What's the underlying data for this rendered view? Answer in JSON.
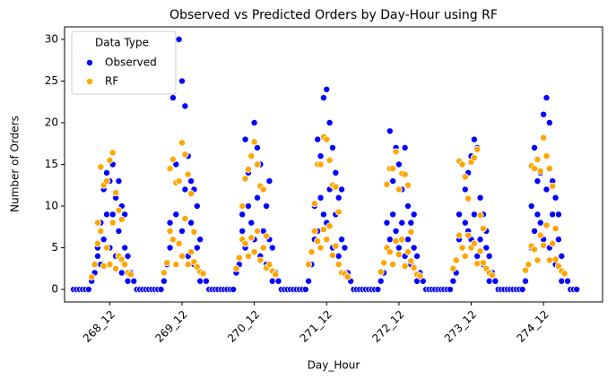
{
  "chart_data": {
    "type": "scatter",
    "title": "Observed vs Predicted Orders by Day-Hour using RF",
    "x_label": "Day_Hour",
    "y_label": "Number of Orders",
    "legend_title": "Data Type",
    "legend_position": "upper left",
    "xlim": [
      -3,
      175.6
    ],
    "ylim": [
      -1.5,
      31.5
    ],
    "xticks": [
      {
        "value": 12,
        "label": "268_12"
      },
      {
        "value": 36,
        "label": "269_12"
      },
      {
        "value": 60,
        "label": "270_12"
      },
      {
        "value": 84,
        "label": "271_12"
      },
      {
        "value": 108,
        "label": "272_12"
      },
      {
        "value": 132,
        "label": "273_12"
      },
      {
        "value": 156,
        "label": "274_12"
      }
    ],
    "yticks": [
      0,
      5,
      10,
      15,
      20,
      25,
      30
    ],
    "series": [
      {
        "name": "Observed",
        "color": "#0000ff",
        "x": [
          0,
          1,
          2,
          3,
          4,
          5,
          6,
          7,
          8,
          8,
          9,
          9,
          10,
          10,
          11,
          11,
          12,
          12,
          13,
          13,
          14,
          14,
          15,
          15,
          16,
          16,
          17,
          17,
          18,
          18,
          19,
          20,
          21,
          22,
          23,
          24,
          25,
          26,
          27,
          28,
          29,
          30,
          31,
          32,
          32,
          33,
          33,
          34,
          34,
          35,
          35,
          36,
          36,
          37,
          37,
          38,
          38,
          39,
          39,
          40,
          40,
          41,
          41,
          42,
          42,
          43,
          44,
          45,
          46,
          47,
          48,
          49,
          50,
          51,
          52,
          53,
          54,
          55,
          56,
          56,
          57,
          57,
          58,
          58,
          59,
          59,
          60,
          60,
          61,
          61,
          62,
          62,
          63,
          63,
          64,
          64,
          65,
          65,
          66,
          66,
          67,
          68,
          69,
          70,
          71,
          72,
          73,
          74,
          75,
          76,
          77,
          78,
          79,
          80,
          80,
          81,
          81,
          82,
          82,
          83,
          83,
          84,
          84,
          85,
          85,
          86,
          86,
          87,
          87,
          88,
          88,
          89,
          89,
          90,
          90,
          91,
          92,
          93,
          94,
          95,
          96,
          97,
          98,
          99,
          100,
          101,
          102,
          103,
          104,
          104,
          105,
          105,
          106,
          106,
          107,
          107,
          108,
          108,
          109,
          109,
          110,
          110,
          111,
          111,
          112,
          112,
          113,
          113,
          114,
          114,
          115,
          116,
          117,
          118,
          119,
          120,
          121,
          122,
          123,
          124,
          125,
          126,
          127,
          128,
          128,
          129,
          129,
          130,
          130,
          131,
          131,
          132,
          132,
          133,
          133,
          134,
          134,
          135,
          135,
          136,
          136,
          137,
          137,
          138,
          138,
          139,
          140,
          141,
          142,
          143,
          144,
          145,
          146,
          147,
          148,
          149,
          150,
          151,
          152,
          152,
          153,
          153,
          154,
          154,
          155,
          155,
          156,
          156,
          157,
          157,
          158,
          158,
          159,
          159,
          160,
          160,
          161,
          161,
          162,
          162,
          163,
          164,
          165,
          166,
          167
        ],
        "values": [
          0,
          0,
          0,
          0,
          0,
          0,
          1,
          2,
          4,
          5,
          8,
          3,
          12,
          6,
          14,
          9,
          13,
          5,
          9,
          15,
          11,
          4,
          13,
          7,
          10,
          2,
          9,
          5,
          4,
          1,
          2,
          1,
          0,
          0,
          0,
          0,
          0,
          0,
          0,
          0,
          0,
          1,
          3,
          5,
          8,
          23,
          6,
          15,
          9,
          13,
          30,
          25,
          7,
          22,
          12,
          16,
          4,
          13,
          8,
          12,
          3,
          10,
          5,
          6,
          1,
          2,
          1,
          0,
          0,
          0,
          0,
          0,
          0,
          0,
          0,
          0,
          2,
          3,
          7,
          9,
          18,
          5,
          14,
          10,
          16,
          8,
          20,
          6,
          17,
          11,
          15,
          4,
          12,
          7,
          10,
          3,
          13,
          6,
          5,
          1,
          2,
          1,
          0,
          0,
          0,
          0,
          0,
          0,
          0,
          0,
          0,
          1,
          3,
          6,
          10,
          18,
          7,
          16,
          11,
          23,
          9,
          24,
          8,
          20,
          12,
          17,
          5,
          14,
          9,
          11,
          4,
          12,
          6,
          5,
          2,
          2,
          1,
          0,
          0,
          0,
          0,
          0,
          0,
          0,
          0,
          0,
          1,
          2,
          5,
          8,
          19,
          6,
          13,
          9,
          17,
          7,
          15,
          5,
          12,
          8,
          17,
          4,
          10,
          6,
          8,
          3,
          9,
          5,
          4,
          1,
          2,
          1,
          0,
          0,
          0,
          0,
          0,
          0,
          0,
          0,
          0,
          1,
          2,
          6,
          9,
          15,
          5,
          12,
          8,
          14,
          7,
          16,
          6,
          18,
          9,
          17,
          4,
          11,
          6,
          9,
          3,
          7,
          5,
          4,
          1,
          2,
          1,
          0,
          0,
          0,
          0,
          0,
          0,
          0,
          0,
          0,
          1,
          3,
          5,
          10,
          17,
          7,
          13,
          9,
          14,
          8,
          21,
          6,
          23,
          12,
          20,
          5,
          13,
          9,
          11,
          3,
          9,
          6,
          4,
          1,
          2,
          1,
          0,
          0,
          0
        ]
      },
      {
        "name": "RF",
        "color": "#ffa500",
        "x": [
          6,
          7,
          8,
          8,
          9,
          9,
          10,
          10,
          11,
          11,
          12,
          12,
          13,
          13,
          14,
          14,
          15,
          15,
          16,
          16,
          17,
          18,
          19,
          30,
          31,
          32,
          32,
          33,
          33,
          34,
          34,
          35,
          35,
          36,
          36,
          37,
          37,
          38,
          38,
          39,
          39,
          40,
          40,
          41,
          42,
          43,
          54,
          55,
          56,
          56,
          57,
          57,
          58,
          58,
          59,
          59,
          60,
          60,
          61,
          61,
          62,
          62,
          63,
          63,
          64,
          64,
          65,
          66,
          67,
          78,
          79,
          80,
          80,
          81,
          81,
          82,
          82,
          83,
          83,
          84,
          84,
          85,
          85,
          86,
          86,
          87,
          87,
          88,
          88,
          89,
          90,
          91,
          102,
          103,
          104,
          104,
          105,
          105,
          106,
          106,
          107,
          107,
          108,
          108,
          109,
          109,
          110,
          110,
          111,
          111,
          112,
          112,
          113,
          114,
          115,
          126,
          127,
          128,
          128,
          129,
          129,
          130,
          130,
          131,
          131,
          132,
          132,
          133,
          133,
          134,
          134,
          135,
          135,
          136,
          136,
          137,
          138,
          139,
          150,
          151,
          152,
          152,
          153,
          153,
          154,
          154,
          155,
          155,
          156,
          156,
          157,
          157,
          158,
          158,
          159,
          159,
          160,
          160,
          161,
          162,
          163
        ],
        "values": [
          1.5,
          3,
          8,
          5.5,
          14.7,
          7,
          12.5,
          2.8,
          13,
          5,
          15.5,
          3,
          16.4,
          8,
          11.6,
          2.5,
          9.5,
          4,
          8.4,
          3.6,
          3,
          2,
          1.8,
          2,
          3.2,
          14.5,
          7,
          15.6,
          6,
          12.8,
          3,
          13,
          5.5,
          17.6,
          4,
          16.2,
          8.5,
          13.8,
          3,
          11.5,
          4.5,
          6.9,
          3.3,
          2.7,
          2.1,
          1.9,
          2.5,
          3.8,
          10,
          6,
          13.3,
          5.5,
          14.4,
          4,
          16,
          6.2,
          17.7,
          4.5,
          15,
          7,
          12.4,
          3.5,
          12,
          5,
          6.4,
          2.6,
          3,
          2.2,
          1.8,
          3,
          4.5,
          10.3,
          7,
          15,
          5.8,
          15,
          5,
          18.3,
          7.2,
          18,
          6,
          15.5,
          7.6,
          12.5,
          4.1,
          12.3,
          5.2,
          9.3,
          3,
          2,
          1.9,
          1.5,
          2.1,
          3.2,
          12.6,
          5,
          14.5,
          4.5,
          14.5,
          3,
          16.5,
          5.8,
          12,
          4.2,
          13.9,
          6,
          13.8,
          2.8,
          12.5,
          4.5,
          6.9,
          3.4,
          2.6,
          1.8,
          1.6,
          2.5,
          3.5,
          15.4,
          6.5,
          15,
          5,
          13.5,
          4,
          10.9,
          6.5,
          15.3,
          5,
          15.8,
          5.5,
          16.8,
          3.1,
          8.9,
          4.6,
          7.3,
          3.2,
          2.5,
          2,
          1.7,
          2.3,
          3,
          14.8,
          5.2,
          14.5,
          4.8,
          15.6,
          3.5,
          14.2,
          6.5,
          18.2,
          5.3,
          16,
          7.7,
          14.5,
          3.5,
          12.4,
          5.5,
          7.3,
          3.6,
          2.8,
          2.2,
          1.9
        ]
      }
    ]
  }
}
